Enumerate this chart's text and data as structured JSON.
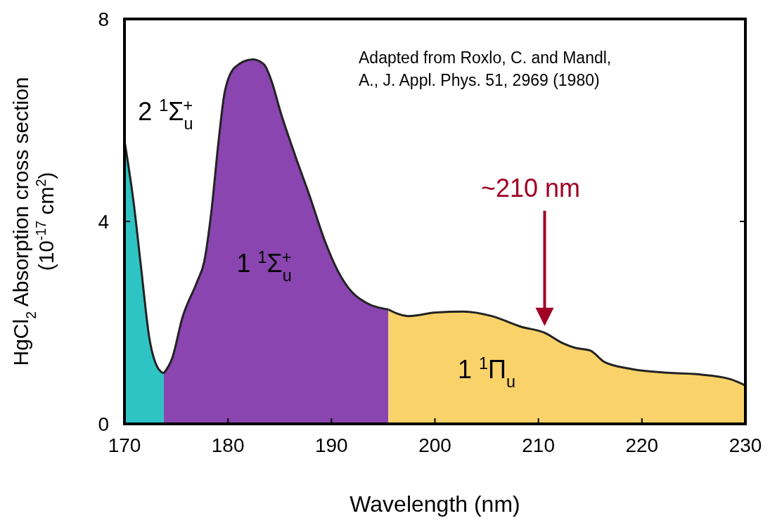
{
  "chart_data": {
    "type": "area",
    "xlabel": "Wavelength (nm)",
    "ylabel": "HgCl$_{2}$ Absorption cross section\n(10$^{-17}$ cm$^{2}$)",
    "xlim": [
      170,
      230
    ],
    "xticks": [
      170,
      180,
      190,
      200,
      210,
      220,
      230
    ],
    "ylim": [
      0,
      8
    ],
    "yticks": [
      0,
      4,
      8
    ],
    "grid": false,
    "series": [
      {
        "color": "#2ec4c4",
        "x": [
          170,
          170.9,
          171.6,
          172.4,
          173.3,
          173.8
        ],
        "values": [
          5.6,
          4.35,
          3.1,
          1.7,
          1.08,
          1.0
        ]
      },
      {
        "color": "#8a45b0",
        "x": [
          173.8,
          174.6,
          175.6,
          177,
          177.7,
          178.4,
          179.1,
          179.7,
          180.7,
          182.4,
          183.5,
          184.2,
          185.1,
          186.5,
          187.9,
          189.3,
          190.6,
          192,
          193.3,
          195.5
        ],
        "values": [
          1.0,
          1.29,
          2.1,
          2.8,
          3.2,
          4.2,
          5.6,
          6.57,
          7.05,
          7.2,
          7.1,
          6.78,
          6.15,
          5.3,
          4.5,
          3.65,
          3.03,
          2.6,
          2.4,
          2.26
        ]
      },
      {
        "color": "#f9d36a",
        "x": [
          195.5,
          197.4,
          200.1,
          202.8,
          205.5,
          208.3,
          210.6,
          212.3,
          213.6,
          215,
          216.4,
          219.1,
          222.5,
          225.9,
          228.6,
          230
        ],
        "values": [
          2.26,
          2.13,
          2.2,
          2.22,
          2.13,
          1.92,
          1.8,
          1.6,
          1.5,
          1.45,
          1.22,
          1.08,
          1.01,
          0.97,
          0.88,
          0.76
        ]
      }
    ],
    "annotations": [
      "Adapted from Roxlo, C. and Mandl,\nA., J. Appl. Phys. 51, 2969 (1980)",
      "2 $^{1}$Σ$_{u}$$^{+}$",
      "1 $^{1}$Σ$_{u}$$^{+}$",
      "1 $^{1}$Π$_{u}$",
      "~210 nm"
    ]
  }
}
